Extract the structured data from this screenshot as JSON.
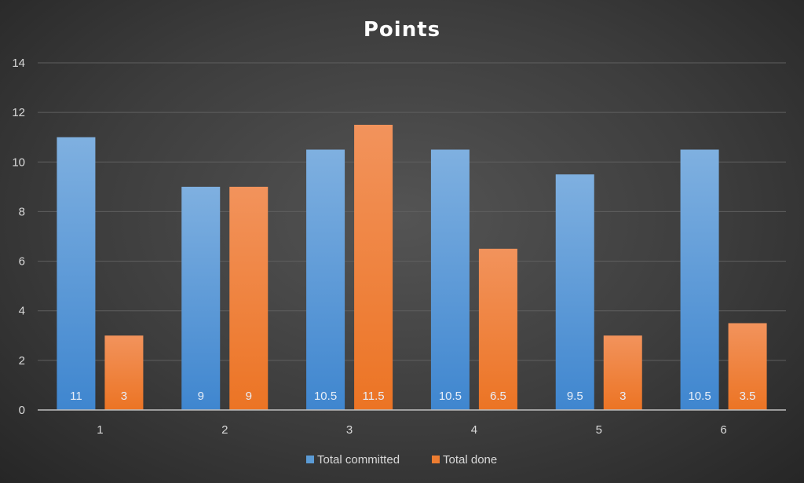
{
  "chart_data": {
    "type": "bar",
    "title": "Points",
    "categories": [
      "1",
      "2",
      "3",
      "4",
      "5",
      "6"
    ],
    "series": [
      {
        "name": "Total committed",
        "values": [
          11,
          9,
          10.5,
          10.5,
          9.5,
          10.5
        ]
      },
      {
        "name": "Total done",
        "values": [
          3,
          9,
          11.5,
          6.5,
          3,
          3.5
        ]
      }
    ],
    "data_labels": [
      [
        "11",
        "9",
        "10.5",
        "10.5",
        "9.5",
        "10.5"
      ],
      [
        "3",
        "9",
        "11.5",
        "6.5",
        "3",
        "3.5"
      ]
    ],
    "y_ticks": [
      "0",
      "2",
      "4",
      "6",
      "8",
      "10",
      "12",
      "14"
    ],
    "ylim": [
      0,
      14
    ],
    "grid": true,
    "legend_position": "bottom",
    "colors": {
      "series": [
        "#5b9bd5",
        "#ed7d31"
      ]
    }
  }
}
